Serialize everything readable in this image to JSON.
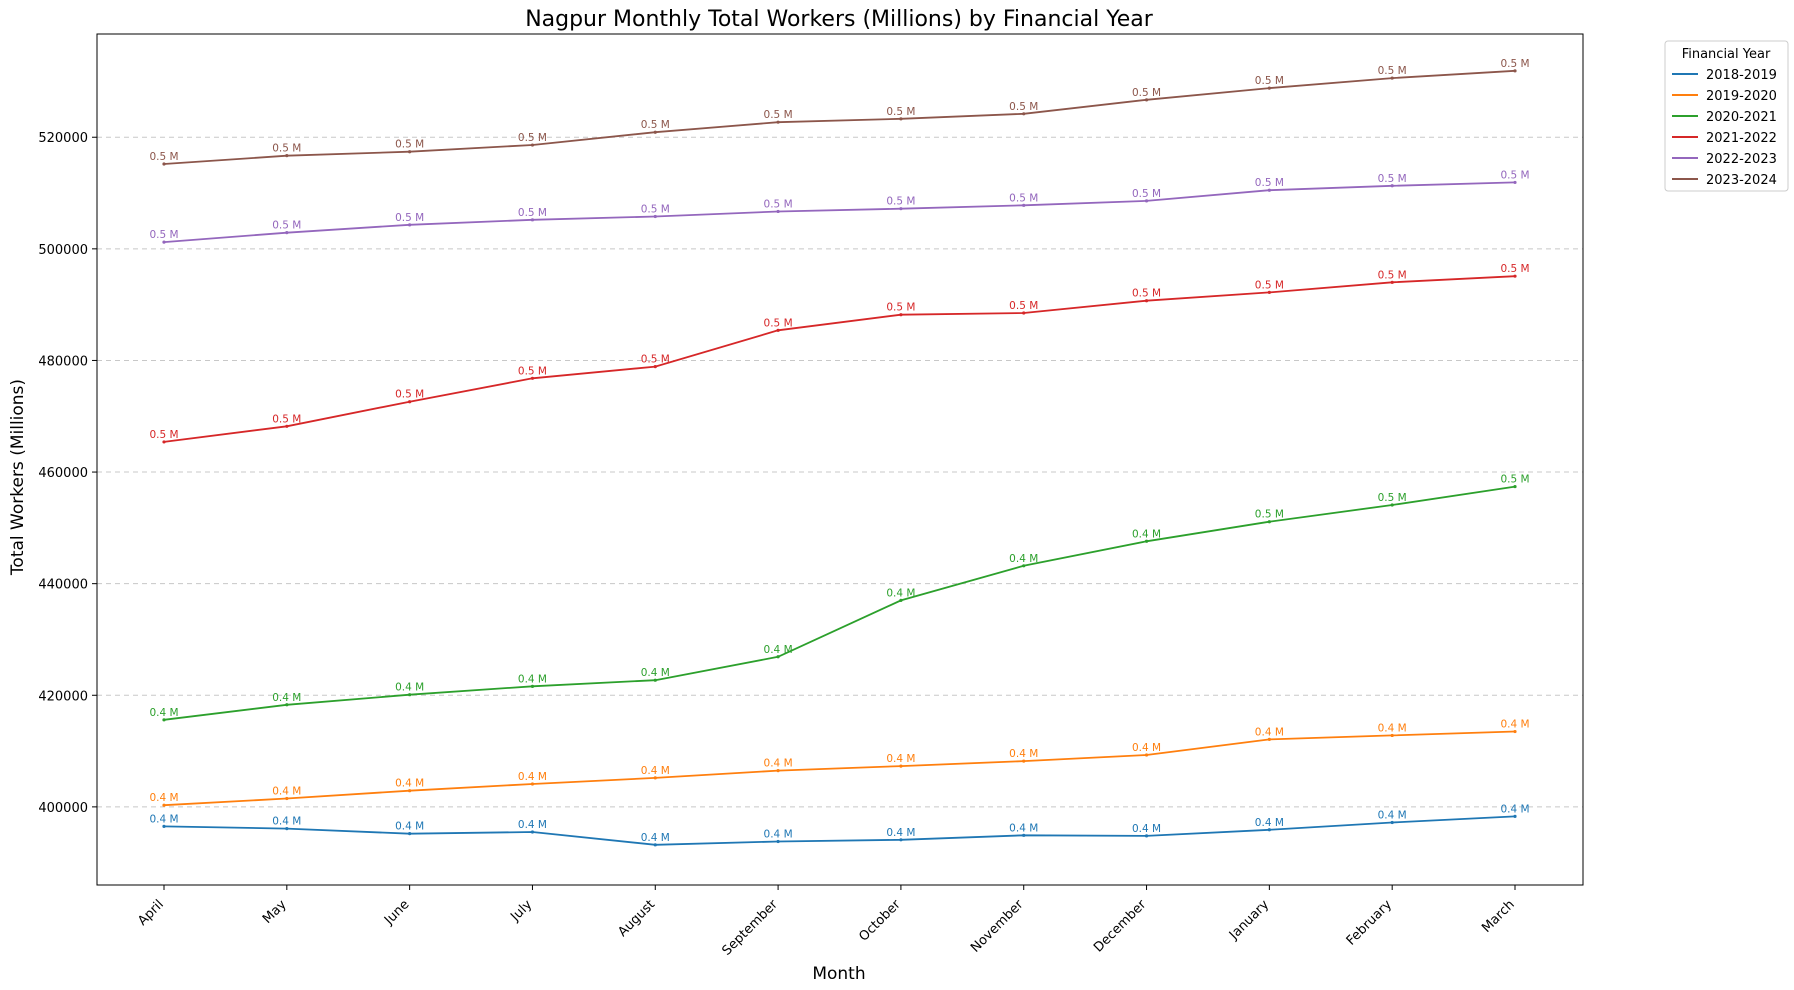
{
  "chart_data": {
    "type": "line",
    "title": "Nagpur Monthly Total Workers (Millions) by Financial Year",
    "xlabel": "Month",
    "ylabel": "Total Workers (Millions)",
    "categories": [
      "April",
      "May",
      "June",
      "July",
      "August",
      "September",
      "October",
      "November",
      "December",
      "January",
      "February",
      "March"
    ],
    "ylim": [
      386000,
      538500
    ],
    "yticks": [
      400000,
      420000,
      440000,
      460000,
      480000,
      500000,
      520000
    ],
    "grid": "horizontal-dashed",
    "legend": {
      "title": "Financial Year",
      "position": "outside-top-right"
    },
    "series": [
      {
        "name": "2018-2019",
        "color": "#1f77b4",
        "values": [
          396500,
          396100,
          395200,
          395500,
          393200,
          393800,
          394100,
          394900,
          394800,
          395900,
          397200,
          398300
        ],
        "labels": [
          "0.4 M",
          "0.4 M",
          "0.4 M",
          "0.4 M",
          "0.4 M",
          "0.4 M",
          "0.4 M",
          "0.4 M",
          "0.4 M",
          "0.4 M",
          "0.4 M",
          "0.4 M"
        ]
      },
      {
        "name": "2019-2020",
        "color": "#ff7f0e",
        "values": [
          400300,
          401500,
          402900,
          404100,
          405200,
          406500,
          407300,
          408200,
          409300,
          412100,
          412800,
          413500
        ],
        "labels": [
          "0.4 M",
          "0.4 M",
          "0.4 M",
          "0.4 M",
          "0.4 M",
          "0.4 M",
          "0.4 M",
          "0.4 M",
          "0.4 M",
          "0.4 M",
          "0.4 M",
          "0.4 M"
        ]
      },
      {
        "name": "2020-2021",
        "color": "#2ca02c",
        "values": [
          415600,
          418300,
          420100,
          421600,
          422700,
          426900,
          437000,
          443200,
          447600,
          451100,
          454100,
          457400
        ],
        "labels": [
          "0.4 M",
          "0.4 M",
          "0.4 M",
          "0.4 M",
          "0.4 M",
          "0.4 M",
          "0.4 M",
          "0.4 M",
          "0.4 M",
          "0.5 M",
          "0.5 M",
          "0.5 M"
        ]
      },
      {
        "name": "2021-2022",
        "color": "#d62728",
        "values": [
          465400,
          468200,
          472600,
          476800,
          478900,
          485400,
          488200,
          488500,
          490700,
          492200,
          494000,
          495100
        ],
        "labels": [
          "0.5 M",
          "0.5 M",
          "0.5 M",
          "0.5 M",
          "0.5 M",
          "0.5 M",
          "0.5 M",
          "0.5 M",
          "0.5 M",
          "0.5 M",
          "0.5 M",
          "0.5 M"
        ]
      },
      {
        "name": "2022-2023",
        "color": "#9467bd",
        "values": [
          501200,
          502900,
          504300,
          505200,
          505800,
          506700,
          507200,
          507800,
          508600,
          510500,
          511300,
          511900
        ],
        "labels": [
          "0.5 M",
          "0.5 M",
          "0.5 M",
          "0.5 M",
          "0.5 M",
          "0.5 M",
          "0.5 M",
          "0.5 M",
          "0.5 M",
          "0.5 M",
          "0.5 M",
          "0.5 M"
        ]
      },
      {
        "name": "2023-2024",
        "color": "#8c564b",
        "values": [
          515200,
          516700,
          517400,
          518600,
          520900,
          522700,
          523300,
          524200,
          526700,
          528800,
          530600,
          531900
        ],
        "labels": [
          "0.5 M",
          "0.5 M",
          "0.5 M",
          "0.5 M",
          "0.5 M",
          "0.5 M",
          "0.5 M",
          "0.5 M",
          "0.5 M",
          "0.5 M",
          "0.5 M",
          "0.5 M"
        ]
      }
    ]
  }
}
